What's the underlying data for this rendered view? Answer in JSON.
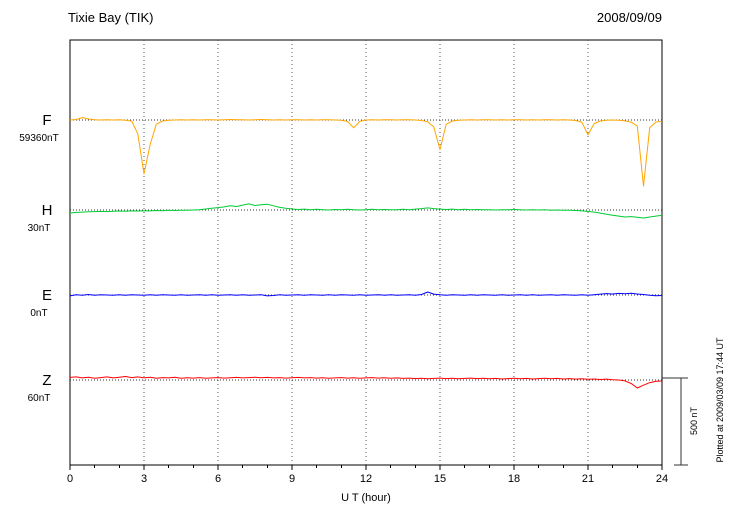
{
  "header": {
    "title": "Tixie Bay (TIK)",
    "date": "2008/09/09"
  },
  "axis": {
    "xlabel": "U T (hour)",
    "ticks": [
      "0",
      "3",
      "6",
      "9",
      "12",
      "15",
      "18",
      "21",
      "24"
    ]
  },
  "scalebar": {
    "label": "500 nT"
  },
  "footer": {
    "plotted_at": "Plotted at 2009/03/09 17:44 UT"
  },
  "chart_data": {
    "type": "line",
    "title": "Tixie Bay (TIK) magnetogram 2008/09/09",
    "xlabel": "U T (hour)",
    "x_range": [
      0,
      24
    ],
    "x_step_hours": 0.25,
    "scale_bar_nT": 500,
    "grid": "dotted vertical every 3 hours",
    "series": [
      {
        "name": "F",
        "base_label": "59360nT",
        "base_nT": 59360,
        "color": "#FFA500",
        "values": [
          0,
          3,
          14,
          6,
          2,
          0,
          2,
          0,
          1,
          -2,
          -6,
          -80,
          -310,
          -140,
          -25,
          -6,
          -2,
          0,
          1,
          0,
          2,
          0,
          1,
          2,
          0,
          1,
          3,
          1,
          2,
          0,
          1,
          3,
          1,
          0,
          2,
          0,
          1,
          2,
          0,
          1,
          0,
          2,
          1,
          0,
          -2,
          -8,
          -45,
          -8,
          0,
          1,
          0,
          2,
          1,
          0,
          1,
          2,
          0,
          -3,
          -10,
          -40,
          -170,
          -25,
          -6,
          -2,
          0,
          1,
          0,
          2,
          1,
          0,
          1,
          0,
          2,
          1,
          0,
          1,
          0,
          2,
          1,
          0,
          1,
          0,
          -3,
          -12,
          -85,
          -20,
          -6,
          -2,
          0,
          -2,
          -5,
          -12,
          -35,
          -380,
          -45,
          -12,
          -6
        ]
      },
      {
        "name": "H",
        "base_label": "30nT",
        "base_nT": 30,
        "color": "#00CC33",
        "values": [
          -17,
          -14,
          -12,
          -10,
          -9,
          -8,
          -9,
          -7,
          -6,
          -7,
          -5,
          -6,
          -4,
          -5,
          -3,
          -4,
          -2,
          -3,
          -1,
          -2,
          0,
          2,
          6,
          10,
          14,
          18,
          25,
          20,
          28,
          35,
          26,
          30,
          33,
          24,
          15,
          10,
          6,
          3,
          5,
          2,
          4,
          2,
          0,
          3,
          1,
          4,
          2,
          0,
          2,
          4,
          1,
          3,
          1,
          2,
          4,
          2,
          5,
          8,
          12,
          8,
          5,
          3,
          5,
          2,
          4,
          1,
          3,
          1,
          2,
          0,
          2,
          1,
          3,
          1,
          0,
          2,
          0,
          1,
          -1,
          0,
          -2,
          -1,
          -3,
          -5,
          -8,
          -12,
          -18,
          -25,
          -30,
          -35,
          -40,
          -38,
          -42,
          -46,
          -40,
          -35,
          -30
        ]
      },
      {
        "name": "E",
        "base_label": "0nT",
        "base_nT": 0,
        "color": "#0000FF",
        "values": [
          -5,
          2,
          -2,
          3,
          -1,
          2,
          0,
          -2,
          1,
          -1,
          2,
          0,
          -2,
          1,
          -1,
          2,
          0,
          -2,
          1,
          -1,
          0,
          2,
          -1,
          1,
          -2,
          0,
          2,
          -1,
          1,
          -2,
          0,
          2,
          -5,
          -3,
          1,
          -1,
          0,
          2,
          -1,
          1,
          0,
          -2,
          1,
          -1,
          2,
          0,
          -2,
          1,
          -1,
          0,
          2,
          -1,
          1,
          -2,
          0,
          2,
          -1,
          3,
          17,
          5,
          2,
          -1,
          1,
          0,
          -2,
          1,
          -1,
          2,
          0,
          -2,
          1,
          -1,
          0,
          2,
          -1,
          1,
          -2,
          0,
          2,
          -1,
          1,
          0,
          -2,
          1,
          -1,
          2,
          5,
          8,
          6,
          9,
          7,
          10,
          6,
          3,
          -2,
          -4,
          -3
        ]
      },
      {
        "name": "Z",
        "base_label": "60nT",
        "base_nT": 60,
        "color": "#FF0000",
        "values": [
          15,
          18,
          12,
          16,
          10,
          14,
          18,
          12,
          16,
          20,
          14,
          18,
          12,
          16,
          10,
          14,
          12,
          16,
          10,
          13,
          11,
          14,
          10,
          12,
          14,
          11,
          13,
          15,
          12,
          14,
          16,
          13,
          15,
          12,
          14,
          11,
          13,
          15,
          12,
          14,
          11,
          13,
          10,
          12,
          14,
          11,
          13,
          10,
          12,
          14,
          11,
          13,
          10,
          12,
          9,
          11,
          8,
          10,
          7,
          9,
          11,
          8,
          10,
          7,
          9,
          11,
          8,
          10,
          7,
          9,
          6,
          8,
          10,
          7,
          9,
          6,
          8,
          10,
          7,
          9,
          6,
          8,
          5,
          7,
          4,
          6,
          3,
          5,
          2,
          0,
          -5,
          -20,
          -46,
          -30,
          -15,
          -8,
          -5
        ]
      }
    ]
  }
}
